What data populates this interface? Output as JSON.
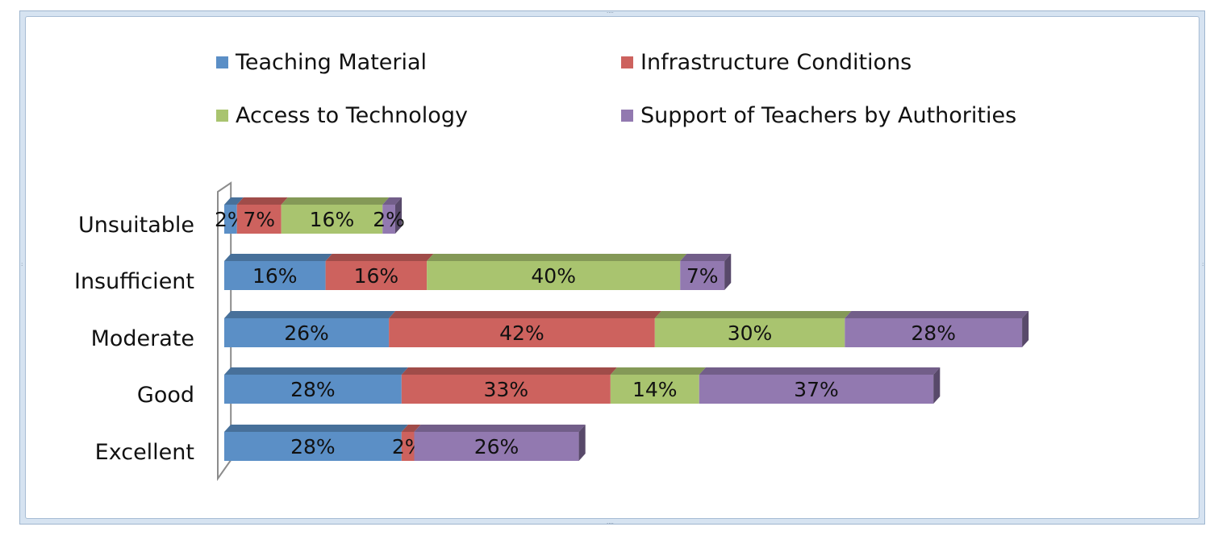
{
  "chart_data": {
    "type": "bar",
    "orientation": "horizontal",
    "stacked": true,
    "style": "3d",
    "categories": [
      "Unsuitable",
      "Insufficient",
      "Moderate",
      "Good",
      "Excellent"
    ],
    "series": [
      {
        "name": "Teaching Material",
        "color": "#5b8fc6",
        "values": [
          2,
          16,
          26,
          28,
          28
        ],
        "labels": [
          "2%",
          "16%",
          "26%",
          "28%",
          "28%"
        ]
      },
      {
        "name": "Infrastructure Conditions",
        "color": "#cd625e",
        "values": [
          7,
          16,
          42,
          33,
          2
        ],
        "labels": [
          "7%",
          "16%",
          "42%",
          "33%",
          "2%"
        ]
      },
      {
        "name": "Access to Technology",
        "color": "#a9c46f",
        "values": [
          16,
          40,
          30,
          14,
          0
        ],
        "labels": [
          "16%",
          "40%",
          "30%",
          "14%",
          ""
        ]
      },
      {
        "name": "Support of Teachers by Authorities",
        "color": "#9279b0",
        "values": [
          2,
          7,
          28,
          37,
          26
        ],
        "labels": [
          "2%",
          "7%",
          "28%",
          "37%",
          "26%"
        ]
      }
    ],
    "legend_position": "top",
    "grid": false,
    "xlim": [
      0,
      160
    ]
  }
}
